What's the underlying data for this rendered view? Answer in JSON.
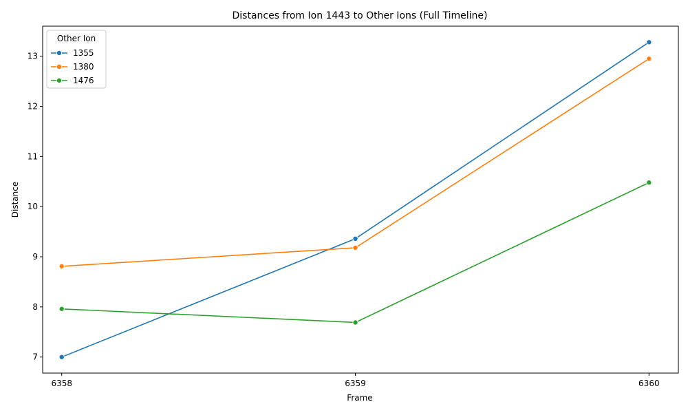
{
  "chart_data": {
    "type": "line",
    "title": "Distances from Ion 1443 to Other Ions (Full Timeline)",
    "xlabel": "Frame",
    "ylabel": "Distance",
    "x": [
      6358,
      6359,
      6360
    ],
    "x_tick_labels": [
      "6358",
      "6359",
      "6360"
    ],
    "y_ticks": [
      7,
      8,
      9,
      10,
      11,
      12,
      13
    ],
    "y_tick_labels": [
      "7",
      "8",
      "9",
      "10",
      "11",
      "12",
      "13"
    ],
    "xlim": [
      6357.935,
      6360.1
    ],
    "ylim": [
      6.68,
      13.6
    ],
    "grid": false,
    "legend_position": "top-left",
    "legend_title": "Other Ion",
    "series": [
      {
        "name": "1355",
        "color": "#1f77b4",
        "values": [
          7.0,
          9.36,
          13.28
        ]
      },
      {
        "name": "1380",
        "color": "#ff7f0e",
        "values": [
          8.81,
          9.18,
          12.95
        ]
      },
      {
        "name": "1476",
        "color": "#2ca02c",
        "values": [
          7.96,
          7.69,
          10.48
        ]
      }
    ]
  }
}
